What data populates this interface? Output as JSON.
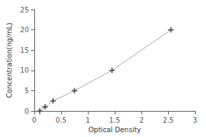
{
  "chart_data": {
    "type": "line",
    "xlabel": "Optical Density",
    "ylabel": "Concentration(ng/mL)",
    "x": [
      0.1,
      0.2,
      0.35,
      0.75,
      1.45,
      2.55
    ],
    "values": [
      0.0,
      1.0,
      2.5,
      5.0,
      10.0,
      20.0
    ],
    "xlim": [
      0,
      3
    ],
    "ylim": [
      0,
      25
    ],
    "xticks": [
      0,
      0.5,
      1,
      1.5,
      2,
      2.5,
      3
    ],
    "yticks": [
      0,
      5,
      10,
      15,
      20,
      25
    ],
    "color": "#444444",
    "marker": "plus",
    "line_style": "dotted",
    "grid": false
  }
}
